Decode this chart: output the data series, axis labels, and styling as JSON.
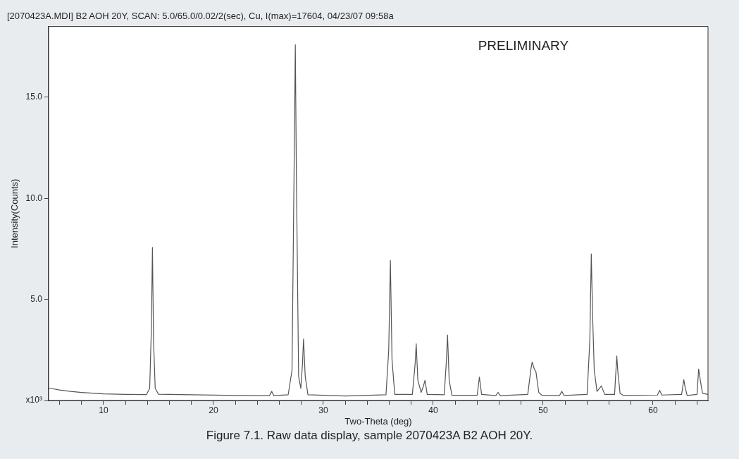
{
  "chart_data": {
    "type": "line",
    "title": "[2070423A.MDI] B2 AOH 20Y, SCAN: 5.0/65.0/0.02/2(sec), Cu, I(max)=17604, 04/23/07 09:58a",
    "xlabel": "Two-Theta (deg)",
    "ylabel": "Intensity(Counts)",
    "annotations": [
      "PRELIMINARY",
      "Figure 7.1.  Raw data display, sample 2070423A  B2 AOH 20Y."
    ],
    "x": [
      5,
      6,
      7,
      8,
      9,
      10,
      12,
      13.9,
      14.2,
      14.35,
      14.45,
      14.55,
      14.7,
      15,
      18,
      22,
      25.1,
      25.3,
      25.5,
      26.8,
      27.15,
      27.35,
      27.45,
      27.55,
      27.75,
      27.95,
      28.1,
      28.2,
      28.35,
      28.6,
      32,
      35.7,
      35.95,
      36.1,
      36.25,
      36.5,
      38.1,
      38.35,
      38.45,
      38.6,
      38.9,
      39.1,
      39.25,
      39.45,
      41.0,
      41.2,
      41.3,
      41.45,
      41.7,
      44.0,
      44.2,
      44.4,
      45.7,
      45.9,
      46.1,
      48.6,
      48.9,
      49.0,
      49.2,
      49.35,
      49.6,
      49.9,
      51.5,
      51.7,
      51.9,
      54.0,
      54.25,
      54.38,
      54.5,
      54.65,
      54.9,
      55.3,
      55.6,
      56.5,
      56.7,
      56.8,
      57.0,
      57.3,
      60.4,
      60.6,
      60.8,
      62.6,
      62.8,
      62.9,
      63.1,
      64.0,
      64.15,
      64.3,
      64.5,
      65
    ],
    "series": [
      {
        "color": "#555555",
        "values": [
          0.62,
          0.52,
          0.45,
          0.4,
          0.36,
          0.33,
          0.3,
          0.29,
          0.6,
          3.5,
          7.57,
          3.0,
          0.6,
          0.31,
          0.28,
          0.25,
          0.24,
          0.45,
          0.24,
          0.28,
          1.5,
          12,
          17.6,
          11,
          1.2,
          0.6,
          1.8,
          3.04,
          1.2,
          0.28,
          0.22,
          0.28,
          2.5,
          6.92,
          2.0,
          0.3,
          0.3,
          1.8,
          2.8,
          1.0,
          0.4,
          0.7,
          1.0,
          0.3,
          0.28,
          2.0,
          3.24,
          1.0,
          0.26,
          0.26,
          1.16,
          0.3,
          0.24,
          0.4,
          0.24,
          0.3,
          1.6,
          1.9,
          1.55,
          1.4,
          0.4,
          0.25,
          0.25,
          0.45,
          0.25,
          0.3,
          3.0,
          7.25,
          4.2,
          1.5,
          0.45,
          0.72,
          0.3,
          0.3,
          2.2,
          1.4,
          0.35,
          0.25,
          0.27,
          0.5,
          0.27,
          0.3,
          1.03,
          0.7,
          0.25,
          0.3,
          1.56,
          1.0,
          0.35,
          0.3
        ]
      }
    ],
    "xlim": [
      5,
      65
    ],
    "xticks": [
      {
        "value": 6,
        "label": null
      },
      {
        "value": 8,
        "label": null
      },
      10,
      {
        "value": 12,
        "label": null
      },
      {
        "value": 14,
        "label": null
      },
      {
        "value": 16,
        "label": null
      },
      {
        "value": 18,
        "label": null
      },
      20,
      {
        "value": 22,
        "label": null
      },
      {
        "value": 24,
        "label": null
      },
      {
        "value": 26,
        "label": null
      },
      {
        "value": 28,
        "label": null
      },
      30,
      {
        "value": 32,
        "label": null
      },
      {
        "value": 34,
        "label": null
      },
      {
        "value": 36,
        "label": null
      },
      {
        "value": 38,
        "label": null
      },
      40,
      {
        "value": 42,
        "label": null
      },
      {
        "value": 44,
        "label": null
      },
      {
        "value": 46,
        "label": null
      },
      {
        "value": 48,
        "label": null
      },
      50,
      {
        "value": 52,
        "label": null
      },
      {
        "value": 54,
        "label": null
      },
      {
        "value": 56,
        "label": null
      },
      {
        "value": 58,
        "label": null
      },
      60,
      {
        "value": 62,
        "label": null
      },
      {
        "value": 64,
        "label": null
      }
    ],
    "ylim": [
      0,
      18.5
    ],
    "yticks": [
      {
        "value": 0,
        "label": "x10³"
      },
      {
        "value": 5,
        "label": "5.0"
      },
      {
        "value": 10,
        "label": "10.0"
      },
      {
        "value": 15,
        "label": "15.0"
      }
    ],
    "grid": false,
    "legend": false,
    "marker": "none",
    "line_style": "solid"
  }
}
